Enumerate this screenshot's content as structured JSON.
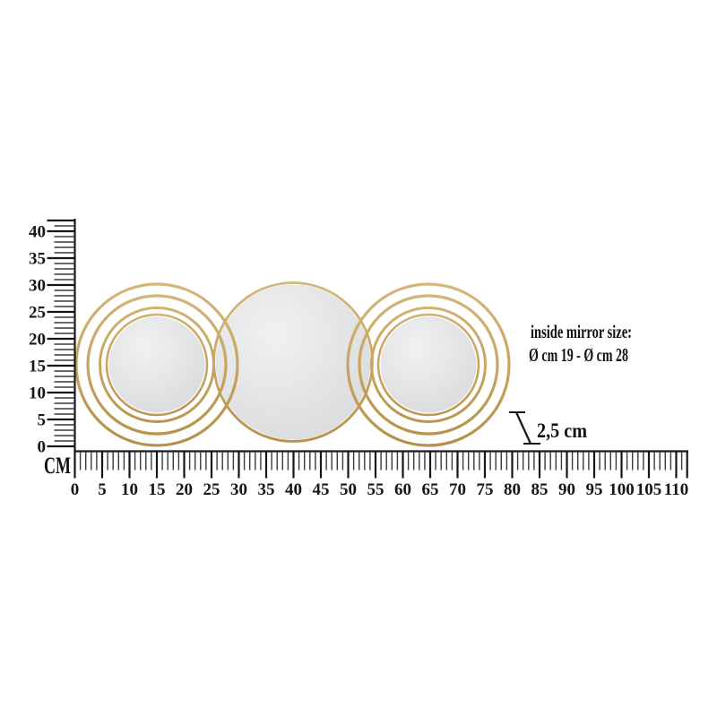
{
  "diagram": {
    "unit_label": "CM",
    "vertical_ruler": {
      "unit": "cm",
      "tick_interval": 1,
      "label_interval": 5,
      "max_tick": 42,
      "labels": [
        "0",
        "5",
        "10",
        "15",
        "20",
        "25",
        "30",
        "35",
        "40"
      ]
    },
    "horizontal_ruler": {
      "unit": "cm",
      "tick_interval": 1,
      "label_interval": 5,
      "max_tick": 112,
      "labels": [
        "0",
        "5",
        "10",
        "15",
        "20",
        "25",
        "30",
        "35",
        "40",
        "45",
        "50",
        "55",
        "60",
        "65",
        "70",
        "75",
        "80",
        "85",
        "90",
        "95",
        "100",
        "105",
        "110"
      ]
    },
    "annotations": {
      "inside_mirror_line1": "inside mirror size:",
      "inside_mirror_line2": "Ø cm 19 - Ø cm 28",
      "depth_label": "2,5 cm"
    },
    "colors": {
      "gold": "#c7a35e",
      "gold_light": "#d5b87e",
      "gold_dark": "#b68e49",
      "mirror_light": "#f0f1f2",
      "mirror_dark": "#d8dadc",
      "ink": "#161616",
      "tick_minor": "#3a3a3a"
    }
  }
}
